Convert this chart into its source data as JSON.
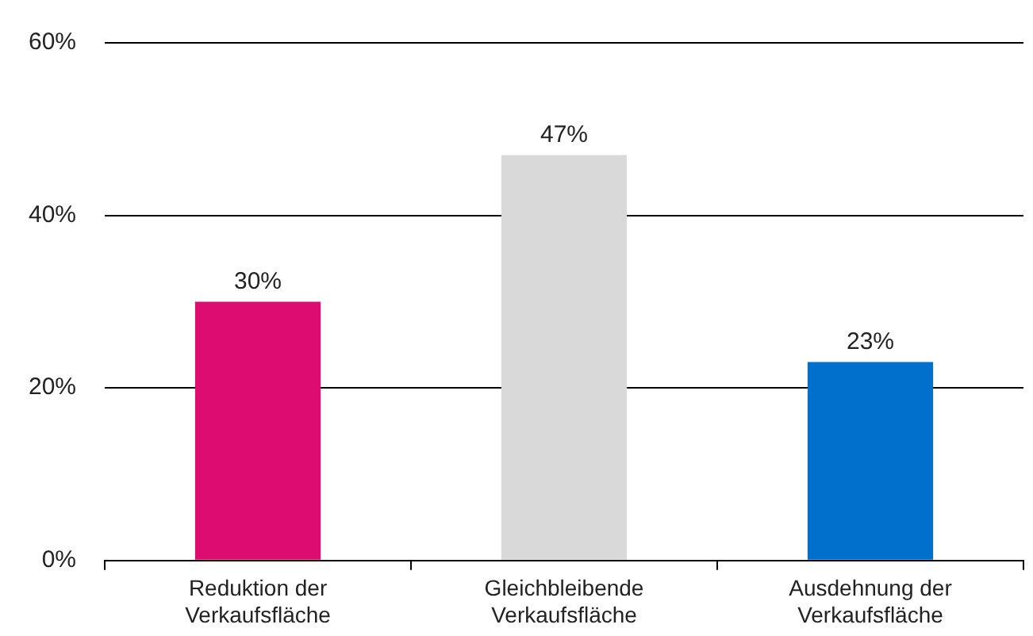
{
  "chart_data": {
    "type": "bar",
    "categories": [
      "Reduktion der Verkaufsfläche",
      "Gleichbleibende Verkaufsfläche",
      "Ausdehnung der Verkaufsfläche"
    ],
    "values": [
      30,
      47,
      23
    ],
    "colors": [
      "#dc0c70",
      "#d9d9d9",
      "#0070cc"
    ],
    "ylim": [
      0,
      60
    ],
    "yticks": [
      {
        "value": 0,
        "label": "0%"
      },
      {
        "value": 20,
        "label": "20%"
      },
      {
        "value": 40,
        "label": "40%"
      },
      {
        "value": 60,
        "label": "60%"
      }
    ],
    "value_labels": [
      "30%",
      "47%",
      "23%"
    ],
    "grid": "y",
    "legend": false
  }
}
